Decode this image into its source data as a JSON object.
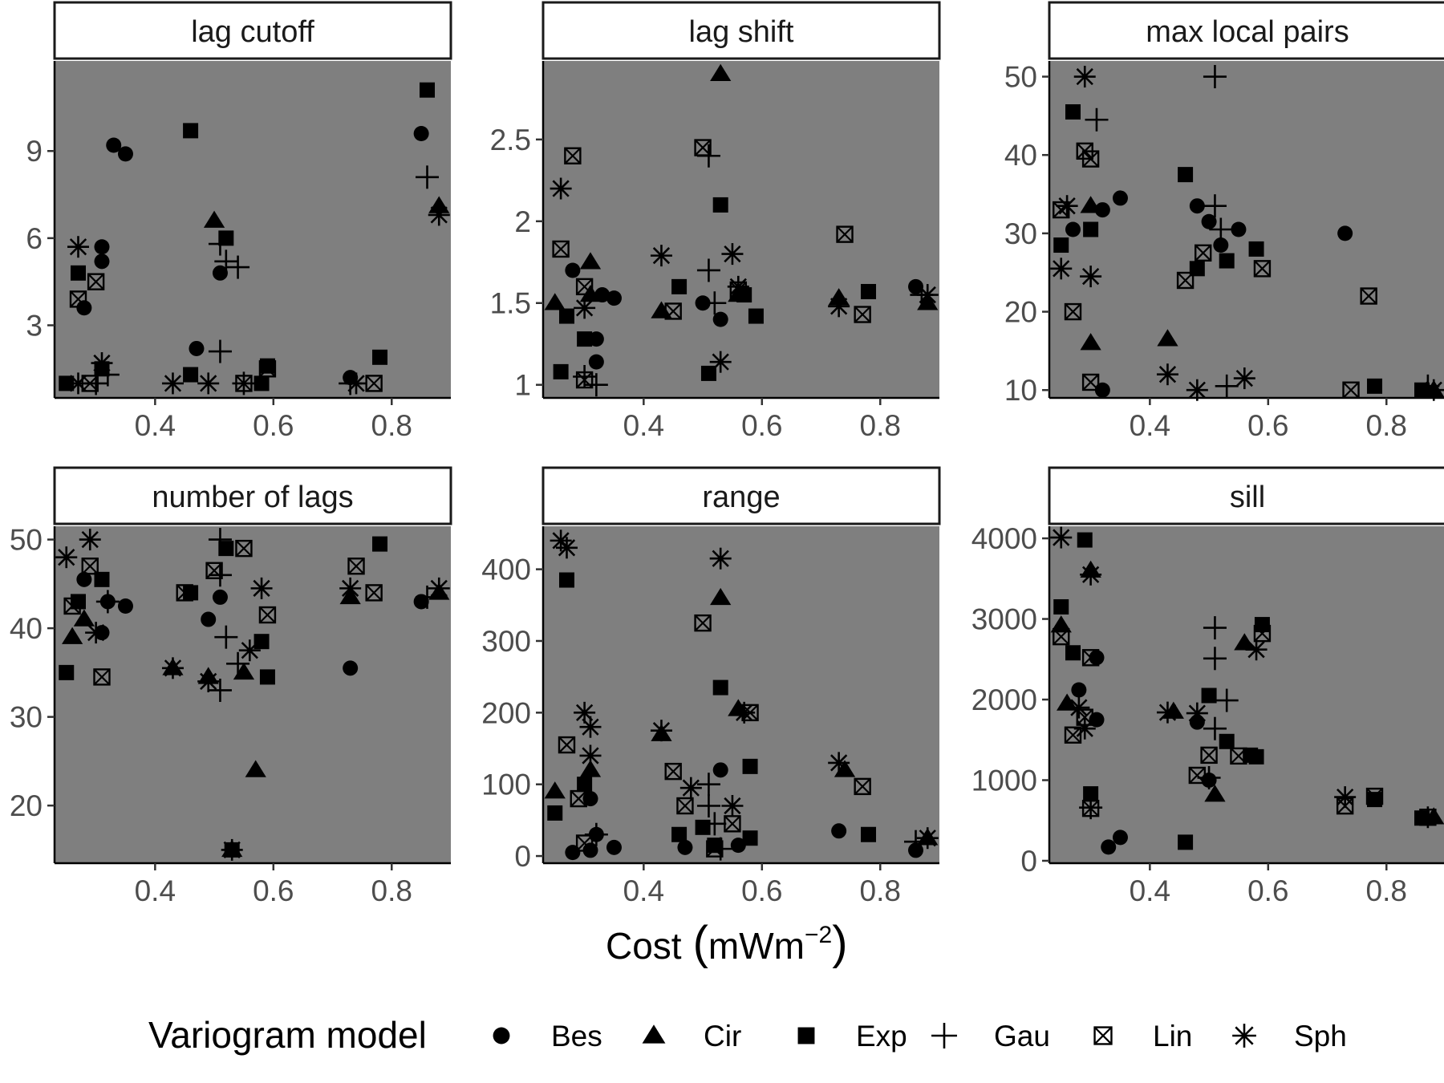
{
  "figure": {
    "x_axis_title": "Cost",
    "x_axis_unit": "mWm",
    "x_axis_unit_exponent": "−2",
    "legend_title": "Variogram model",
    "legend_entries": [
      {
        "label": "Bes",
        "shape": "circle"
      },
      {
        "label": "Cir",
        "shape": "triangle"
      },
      {
        "label": "Exp",
        "shape": "square"
      },
      {
        "label": "Gau",
        "shape": "plus"
      },
      {
        "label": "Lin",
        "shape": "boxed-x"
      },
      {
        "label": "Sph",
        "shape": "asterisk"
      }
    ]
  },
  "chart_data": [
    {
      "type": "scatter",
      "title": "lag cutoff",
      "xlim": [
        0.23,
        0.9
      ],
      "ylim": [
        0.5,
        12.1
      ],
      "yticks": [
        3,
        6,
        9
      ],
      "xticks": [
        0.4,
        0.6,
        0.8
      ],
      "series": [
        {
          "name": "Bes",
          "x": [
            0.33,
            0.35,
            0.31,
            0.31,
            0.28,
            0.51,
            0.47,
            0.85,
            0.73
          ],
          "y": [
            9.2,
            8.9,
            5.7,
            5.2,
            3.6,
            4.8,
            2.2,
            9.6,
            1.2
          ]
        },
        {
          "name": "Cir",
          "x": [
            0.5,
            0.88
          ],
          "y": [
            6.6,
            7.1
          ]
        },
        {
          "name": "Exp",
          "x": [
            0.46,
            0.52,
            0.27,
            0.31,
            0.86,
            0.59,
            0.78,
            0.46,
            0.25,
            0.58
          ],
          "y": [
            9.7,
            6.0,
            4.8,
            1.5,
            11.1,
            1.6,
            1.9,
            1.3,
            1.0,
            1.0
          ]
        },
        {
          "name": "Gau",
          "x": [
            0.86,
            0.51,
            0.52,
            0.54,
            0.51,
            0.32,
            0.3,
            0.73,
            0.55
          ],
          "y": [
            8.1,
            5.8,
            5.2,
            5.0,
            2.1,
            1.3,
            1.0,
            1.0,
            1.0
          ]
        },
        {
          "name": "Lin",
          "x": [
            0.3,
            0.27,
            0.59,
            0.77,
            0.29,
            0.55
          ],
          "y": [
            4.5,
            3.9,
            1.5,
            1.0,
            1.0,
            1.0
          ]
        },
        {
          "name": "Sph",
          "x": [
            0.27,
            0.88,
            0.31,
            0.43,
            0.27,
            0.74,
            0.49
          ],
          "y": [
            5.7,
            6.8,
            1.7,
            1.0,
            1.0,
            1.0,
            1.0
          ]
        }
      ]
    },
    {
      "type": "scatter",
      "title": "lag shift",
      "xlim": [
        0.23,
        0.9
      ],
      "ylim": [
        0.92,
        2.98
      ],
      "yticks": [
        1.0,
        1.5,
        2.0,
        2.5
      ],
      "xticks": [
        0.4,
        0.6,
        0.8
      ],
      "series": [
        {
          "name": "Bes",
          "x": [
            0.28,
            0.33,
            0.35,
            0.32,
            0.32,
            0.53,
            0.86,
            0.5
          ],
          "y": [
            1.7,
            1.55,
            1.53,
            1.28,
            1.14,
            1.4,
            1.6,
            1.5
          ]
        },
        {
          "name": "Cir",
          "x": [
            0.53,
            0.31,
            0.25,
            0.43,
            0.73,
            0.88,
            0.56,
            0.31
          ],
          "y": [
            2.9,
            1.75,
            1.5,
            1.45,
            1.53,
            1.5,
            1.55,
            1.55
          ]
        },
        {
          "name": "Exp",
          "x": [
            0.53,
            0.26,
            0.27,
            0.3,
            0.46,
            0.51,
            0.78,
            0.59,
            0.57
          ],
          "y": [
            2.1,
            1.08,
            1.42,
            1.28,
            1.6,
            1.07,
            1.57,
            1.42,
            1.55
          ]
        },
        {
          "name": "Gau",
          "x": [
            0.51,
            0.51,
            0.87,
            0.52,
            0.32,
            0.3
          ],
          "y": [
            2.4,
            1.7,
            1.55,
            1.5,
            1.0,
            1.05
          ]
        },
        {
          "name": "Lin",
          "x": [
            0.28,
            0.5,
            0.26,
            0.74,
            0.3,
            0.77,
            0.56,
            0.45,
            0.3
          ],
          "y": [
            2.4,
            2.45,
            1.83,
            1.92,
            1.6,
            1.43,
            1.58,
            1.45,
            1.03
          ]
        },
        {
          "name": "Sph",
          "x": [
            0.26,
            0.43,
            0.55,
            0.53,
            0.73,
            0.88,
            0.3,
            0.56
          ],
          "y": [
            2.2,
            1.79,
            1.8,
            1.14,
            1.48,
            1.55,
            1.47,
            1.6
          ]
        }
      ]
    },
    {
      "type": "scatter",
      "title": "max local pairs",
      "xlim": [
        0.23,
        0.9
      ],
      "ylim": [
        9,
        52
      ],
      "yticks": [
        10,
        20,
        30,
        40,
        50
      ],
      "xticks": [
        0.4,
        0.6,
        0.8
      ],
      "series": [
        {
          "name": "Bes",
          "x": [
            0.35,
            0.32,
            0.27,
            0.48,
            0.5,
            0.52,
            0.55,
            0.73,
            0.32
          ],
          "y": [
            34.5,
            33,
            30.5,
            33.5,
            31.5,
            28.5,
            30.5,
            30,
            10
          ]
        },
        {
          "name": "Cir",
          "x": [
            0.3,
            0.43,
            0.3,
            0.88
          ],
          "y": [
            33.5,
            16.5,
            16,
            10
          ]
        },
        {
          "name": "Exp",
          "x": [
            0.27,
            0.46,
            0.25,
            0.3,
            0.48,
            0.53,
            0.58,
            0.78,
            0.86
          ],
          "y": [
            45.5,
            37.5,
            28.5,
            30.5,
            25.5,
            26.5,
            28,
            10.5,
            10
          ]
        },
        {
          "name": "Gau",
          "x": [
            0.51,
            0.31,
            0.51,
            0.52,
            0.87,
            0.53
          ],
          "y": [
            50,
            44.5,
            33.5,
            30.5,
            10.5,
            10.5
          ]
        },
        {
          "name": "Lin",
          "x": [
            0.29,
            0.3,
            0.25,
            0.49,
            0.59,
            0.46,
            0.27,
            0.3,
            0.77,
            0.74
          ],
          "y": [
            40.5,
            39.5,
            33,
            27.5,
            25.5,
            24,
            20,
            11,
            22,
            10
          ]
        },
        {
          "name": "Sph",
          "x": [
            0.29,
            0.26,
            0.25,
            0.3,
            0.43,
            0.48,
            0.56,
            0.88
          ],
          "y": [
            50,
            33.5,
            25.5,
            24.5,
            12,
            10,
            11.5,
            10
          ]
        }
      ]
    },
    {
      "type": "scatter",
      "title": "number of lags",
      "xlim": [
        0.23,
        0.9
      ],
      "ylim": [
        13.5,
        51.5
      ],
      "yticks": [
        20,
        30,
        40,
        50
      ],
      "xticks": [
        0.4,
        0.6,
        0.8
      ],
      "series": [
        {
          "name": "Bes",
          "x": [
            0.28,
            0.32,
            0.35,
            0.31,
            0.51,
            0.49,
            0.73,
            0.85,
            0.53
          ],
          "y": [
            45.5,
            43,
            42.5,
            39.5,
            43.5,
            41,
            35.5,
            43,
            15
          ]
        },
        {
          "name": "Cir",
          "x": [
            0.26,
            0.28,
            0.43,
            0.49,
            0.57,
            0.55,
            0.73,
            0.88,
            0.53
          ],
          "y": [
            39,
            41,
            35.5,
            34.5,
            24,
            35,
            43.5,
            44,
            15
          ]
        },
        {
          "name": "Exp",
          "x": [
            0.25,
            0.27,
            0.31,
            0.46,
            0.52,
            0.58,
            0.59,
            0.78,
            0.53
          ],
          "y": [
            35,
            43,
            45.5,
            44,
            49,
            38.5,
            34.5,
            49.5,
            15
          ]
        },
        {
          "name": "Gau",
          "x": [
            0.51,
            0.51,
            0.52,
            0.51,
            0.54,
            0.32,
            0.86
          ],
          "y": [
            50,
            46,
            39,
            33,
            36,
            43,
            43.5
          ]
        },
        {
          "name": "Lin",
          "x": [
            0.26,
            0.29,
            0.55,
            0.59,
            0.74,
            0.77,
            0.31,
            0.45,
            0.5
          ],
          "y": [
            42.5,
            47,
            49,
            41.5,
            47,
            44,
            34.5,
            44,
            46.5
          ]
        },
        {
          "name": "Sph",
          "x": [
            0.29,
            0.25,
            0.3,
            0.43,
            0.49,
            0.58,
            0.56,
            0.73,
            0.88,
            0.53
          ],
          "y": [
            50,
            48,
            39.5,
            35.5,
            34,
            44.5,
            37.5,
            44.5,
            44.5,
            15
          ]
        }
      ]
    },
    {
      "type": "scatter",
      "title": "range",
      "xlim": [
        0.23,
        0.9
      ],
      "ylim": [
        -10,
        460
      ],
      "yticks": [
        0,
        100,
        200,
        300,
        400
      ],
      "xticks": [
        0.4,
        0.6,
        0.8
      ],
      "series": [
        {
          "name": "Bes",
          "x": [
            0.53,
            0.31,
            0.32,
            0.35,
            0.28,
            0.31,
            0.73,
            0.47,
            0.86,
            0.56
          ],
          "y": [
            120,
            80,
            30,
            12,
            5,
            8,
            35,
            12,
            8,
            15
          ]
        },
        {
          "name": "Cir",
          "x": [
            0.53,
            0.56,
            0.25,
            0.31,
            0.43,
            0.74,
            0.88
          ],
          "y": [
            360,
            205,
            90,
            120,
            170,
            120,
            25
          ]
        },
        {
          "name": "Exp",
          "x": [
            0.27,
            0.53,
            0.58,
            0.25,
            0.3,
            0.46,
            0.5,
            0.78,
            0.58,
            0.52
          ],
          "y": [
            385,
            235,
            125,
            60,
            100,
            30,
            40,
            30,
            25,
            15
          ]
        },
        {
          "name": "Gau",
          "x": [
            0.51,
            0.51,
            0.52,
            0.32,
            0.86,
            0.53
          ],
          "y": [
            100,
            70,
            45,
            30,
            20,
            10
          ]
        },
        {
          "name": "Lin",
          "x": [
            0.5,
            0.58,
            0.27,
            0.29,
            0.45,
            0.47,
            0.77,
            0.3,
            0.55,
            0.52
          ],
          "y": [
            325,
            200,
            155,
            80,
            118,
            70,
            97,
            18,
            45,
            10
          ]
        },
        {
          "name": "Sph",
          "x": [
            0.53,
            0.27,
            0.26,
            0.3,
            0.31,
            0.31,
            0.43,
            0.57,
            0.55,
            0.48,
            0.73,
            0.88
          ],
          "y": [
            415,
            430,
            440,
            200,
            180,
            140,
            175,
            200,
            70,
            95,
            130,
            25
          ]
        }
      ]
    },
    {
      "type": "scatter",
      "title": "sill",
      "xlim": [
        0.23,
        0.9
      ],
      "ylim": [
        -30,
        4150
      ],
      "yticks": [
        0,
        1000,
        2000,
        3000,
        4000
      ],
      "xticks": [
        0.4,
        0.6,
        0.8
      ],
      "series": [
        {
          "name": "Bes",
          "x": [
            0.31,
            0.28,
            0.31,
            0.33,
            0.35,
            0.48,
            0.5,
            0.86
          ],
          "y": [
            2520,
            2120,
            1750,
            170,
            290,
            1720,
            1000,
            530
          ]
        },
        {
          "name": "Cir",
          "x": [
            0.25,
            0.3,
            0.26,
            0.44,
            0.51,
            0.56,
            0.88
          ],
          "y": [
            2920,
            3600,
            1950,
            1850,
            820,
            2700,
            540
          ]
        },
        {
          "name": "Exp",
          "x": [
            0.29,
            0.25,
            0.27,
            0.3,
            0.46,
            0.5,
            0.53,
            0.59,
            0.58,
            0.78,
            0.57,
            0.86
          ],
          "y": [
            3980,
            3150,
            2580,
            830,
            230,
            2050,
            1480,
            2930,
            1290,
            760,
            1310,
            530
          ]
        },
        {
          "name": "Gau",
          "x": [
            0.51,
            0.51,
            0.53,
            0.51,
            0.3,
            0.5
          ],
          "y": [
            2890,
            2510,
            1990,
            1640,
            660,
            1030
          ]
        },
        {
          "name": "Lin",
          "x": [
            0.59,
            0.3,
            0.25,
            0.29,
            0.27,
            0.5,
            0.48,
            0.3,
            0.73,
            0.78,
            0.55,
            0.87
          ],
          "y": [
            2820,
            2520,
            2780,
            1780,
            1560,
            1310,
            1060,
            650,
            680,
            800,
            1300,
            540
          ]
        },
        {
          "name": "Sph",
          "x": [
            0.25,
            0.3,
            0.28,
            0.29,
            0.43,
            0.48,
            0.58,
            0.73,
            0.87
          ],
          "y": [
            4010,
            3550,
            1900,
            1640,
            1840,
            1830,
            2620,
            790,
            540
          ]
        }
      ]
    }
  ]
}
